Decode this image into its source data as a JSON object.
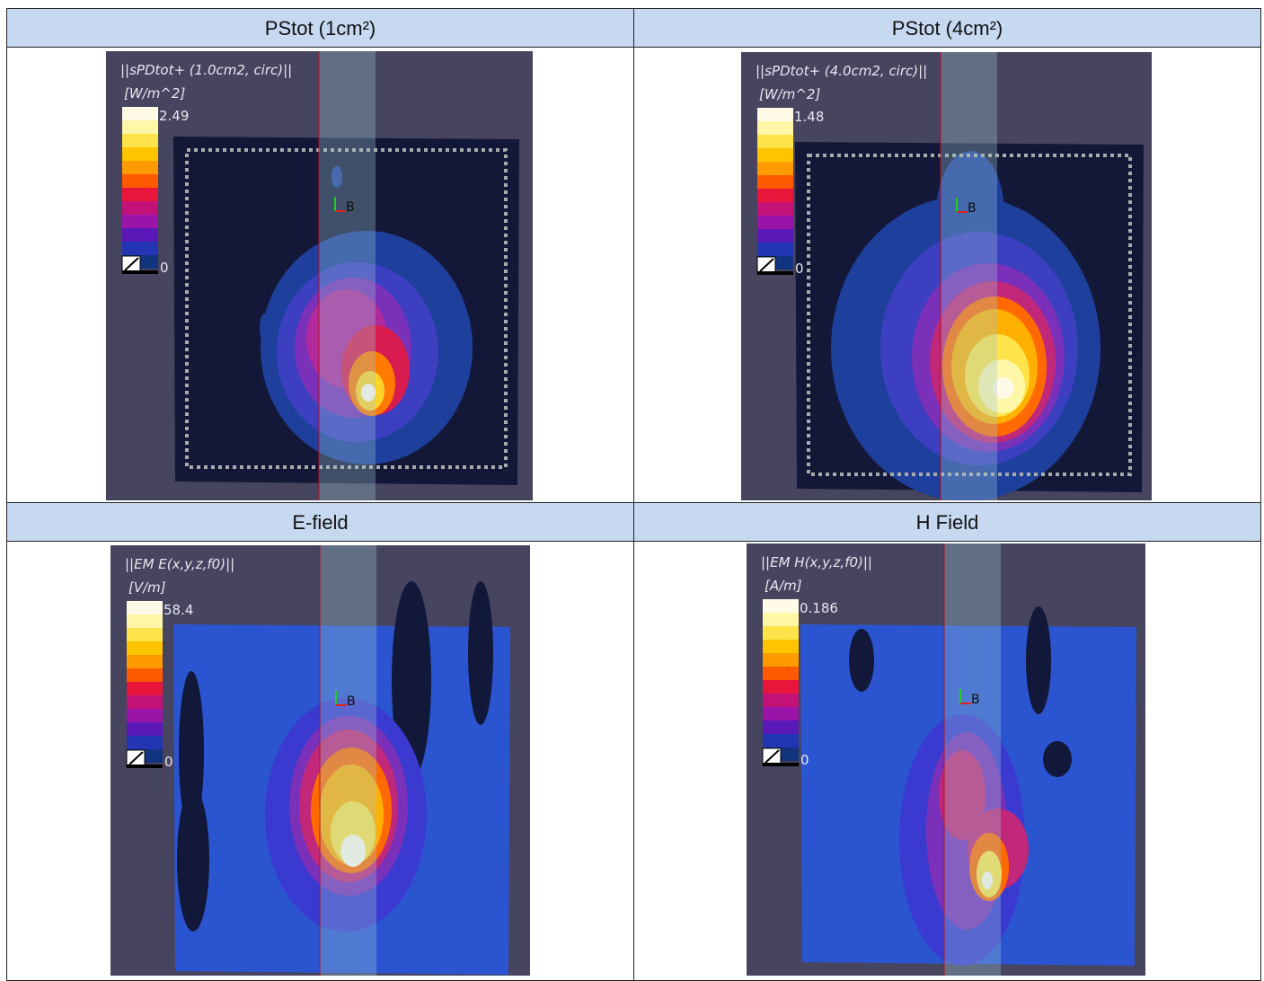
{
  "headers": [
    "PStot (1cm²)",
    "PStot (4cm²)",
    "E-field",
    "H Field"
  ],
  "panels": [
    {
      "title": "||sPDtot+ (1.0cm2, circ)||",
      "unit": "[W/m^2]",
      "max": "2.49",
      "min": "0",
      "marker": "B"
    },
    {
      "title": "||sPDtot+ (4.0cm2, circ)||",
      "unit": "[W/m^2]",
      "max": "1.48",
      "min": "0",
      "marker": "B"
    },
    {
      "title": "||EM E(x,y,z,f0)||",
      "unit": "[V/m]",
      "max": "58.4",
      "min": "0",
      "marker": "B"
    },
    {
      "title": "||EM H(x,y,z,f0)||",
      "unit": "[A/m]",
      "max": "0.186",
      "min": "0",
      "marker": "B"
    }
  ]
}
